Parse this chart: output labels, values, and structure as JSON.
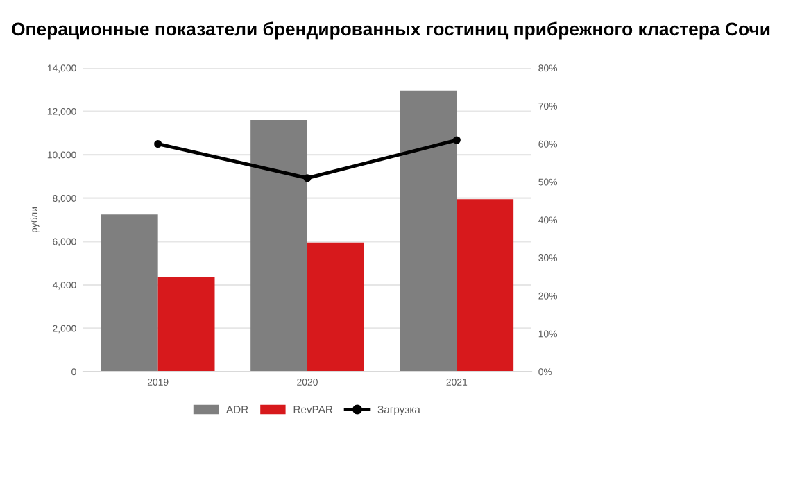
{
  "chart_data": {
    "type": "bar",
    "title": "Операционные показатели брендированных гостиниц прибрежного кластера Сочи",
    "ylabel": "рубли",
    "categories": [
      "2019",
      "2020",
      "2021"
    ],
    "series": [
      {
        "name": "ADR",
        "color": "#7f7f7f",
        "values": [
          7250,
          11600,
          12950
        ]
      },
      {
        "name": "RevPAR",
        "color": "#d7191c",
        "values": [
          4350,
          5950,
          7950
        ]
      },
      {
        "name": "Загрузка",
        "color": "#000000",
        "type": "line",
        "axis": "y2",
        "values": [
          60,
          51,
          61
        ]
      }
    ],
    "ylim": [
      0,
      14000
    ],
    "yticks": [
      {
        "value": 0,
        "label": "0"
      },
      {
        "value": 2000,
        "label": "2,000"
      },
      {
        "value": 4000,
        "label": "4,000"
      },
      {
        "value": 6000,
        "label": "6,000"
      },
      {
        "value": 8000,
        "label": "8,000"
      },
      {
        "value": 10000,
        "label": "10,000"
      },
      {
        "value": 12000,
        "label": "12,000"
      },
      {
        "value": 14000,
        "label": "14,000"
      }
    ],
    "y2lim": [
      0,
      80
    ],
    "y2ticks": [
      {
        "value": 0,
        "label": "0%"
      },
      {
        "value": 10,
        "label": "10%"
      },
      {
        "value": 20,
        "label": "20%"
      },
      {
        "value": 30,
        "label": "30%"
      },
      {
        "value": 40,
        "label": "40%"
      },
      {
        "value": 50,
        "label": "50%"
      },
      {
        "value": 60,
        "label": "60%"
      },
      {
        "value": 70,
        "label": "70%"
      },
      {
        "value": 80,
        "label": "80%"
      }
    ],
    "grid": "y",
    "legend": "bottom",
    "marker": "circle",
    "line_style": "solid"
  }
}
